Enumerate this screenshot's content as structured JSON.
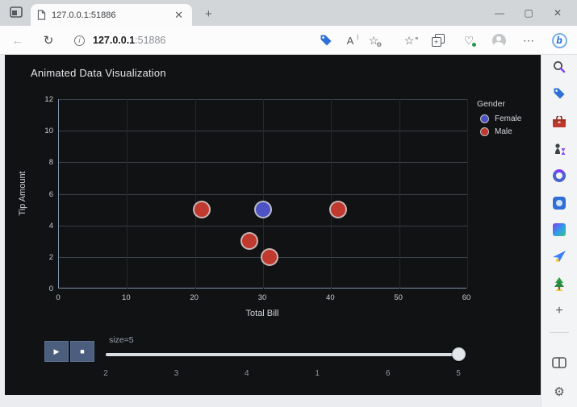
{
  "window": {
    "controls": {
      "minimize": "—",
      "maximize": "▢",
      "close": "✕"
    }
  },
  "browser": {
    "tab_title": "127.0.0.1:51886",
    "new_tab_label": "+",
    "url": {
      "host": "127.0.0.1",
      "port": ":51886",
      "info_glyph": "i"
    },
    "nav": {
      "back_glyph": "←",
      "refresh_glyph": "↻"
    },
    "toolbar_icons": [
      {
        "name": "shopping-tag-icon"
      },
      {
        "name": "read-aloud-icon",
        "glyph": "A"
      },
      {
        "name": "add-favorite-icon",
        "glyph": "☆"
      },
      {
        "name": "favorites-icon",
        "glyph": "☆"
      },
      {
        "name": "collections-icon",
        "glyph": "+"
      },
      {
        "name": "browser-essentials-icon",
        "glyph": "♡"
      },
      {
        "name": "profile-avatar"
      },
      {
        "name": "more-options-icon",
        "glyph": "⋯"
      },
      {
        "name": "copilot-icon",
        "glyph": "b"
      }
    ]
  },
  "page": {
    "title": "Animated Data Visualization"
  },
  "chart_data": {
    "type": "scatter",
    "title": "Animated Data Visualization",
    "xlabel": "Total Bill",
    "ylabel": "Tip Amount",
    "xlim": [
      0,
      60
    ],
    "ylim": [
      0,
      12
    ],
    "xticks": [
      0,
      10,
      20,
      30,
      40,
      50,
      60
    ],
    "yticks": [
      0,
      2,
      4,
      6,
      8,
      10,
      12
    ],
    "grid": true,
    "legend_title": "Gender",
    "legend_position": "top-right",
    "series": [
      {
        "name": "Female",
        "color": "#4d52c4",
        "points": [
          [
            30,
            5
          ]
        ]
      },
      {
        "name": "Male",
        "color": "#c0392e",
        "points": [
          [
            21,
            5
          ],
          [
            41,
            5
          ],
          [
            28,
            3
          ],
          [
            31,
            2
          ]
        ]
      }
    ],
    "marker_size": 5
  },
  "controls": {
    "play_glyph": "▶",
    "stop_glyph": "■",
    "size_label": "size=5",
    "slider_steps": [
      "2",
      "3",
      "4",
      "1",
      "6",
      "5"
    ],
    "active_step_index": 5,
    "active_step": "5"
  },
  "sidebar_icons": [
    {
      "name": "search-icon"
    },
    {
      "name": "shopping-icon"
    },
    {
      "name": "toolbox-icon"
    },
    {
      "name": "games-icon"
    },
    {
      "name": "microsoft-365-icon"
    },
    {
      "name": "designer-icon"
    },
    {
      "name": "image-creator-icon"
    },
    {
      "name": "outlook-icon"
    },
    {
      "name": "tree-game-icon"
    },
    {
      "name": "add-to-sidebar-icon",
      "glyph": "+"
    },
    {
      "name": "divider"
    },
    {
      "name": "split-screen-icon"
    },
    {
      "name": "settings-icon",
      "glyph": "⚙"
    }
  ],
  "colors": {
    "page_bg": "#111214",
    "female": "#4d52c4",
    "male": "#c0392e",
    "button_bg": "#4c5e7d",
    "accent_blue": "#2f6fd6"
  }
}
